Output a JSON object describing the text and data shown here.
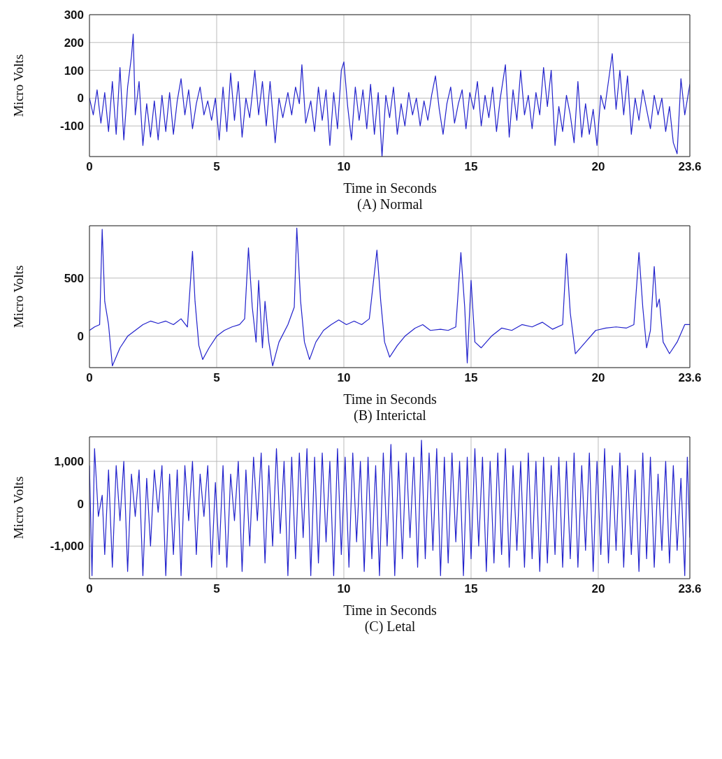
{
  "chart_data": [
    {
      "type": "line",
      "title": "(A)  Normal",
      "xlabel": "Time in Seconds",
      "ylabel": "Micro Volts",
      "xlim": [
        0,
        23.6
      ],
      "ylim": [
        -210,
        300
      ],
      "xticks": [
        0,
        5,
        10,
        15,
        20,
        23.6
      ],
      "yticks": [
        -100,
        0,
        100,
        200,
        300
      ],
      "grid": true,
      "marker": "none",
      "line_style": "solid",
      "x": [
        0,
        0.15,
        0.3,
        0.45,
        0.6,
        0.75,
        0.9,
        1.05,
        1.2,
        1.35,
        1.5,
        1.65,
        1.72,
        1.8,
        1.95,
        2.1,
        2.25,
        2.4,
        2.55,
        2.7,
        2.85,
        3.0,
        3.15,
        3.3,
        3.45,
        3.6,
        3.75,
        3.9,
        4.05,
        4.2,
        4.35,
        4.5,
        4.65,
        4.8,
        4.95,
        5.1,
        5.25,
        5.4,
        5.55,
        5.7,
        5.85,
        6.0,
        6.15,
        6.3,
        6.5,
        6.65,
        6.8,
        6.95,
        7.1,
        7.3,
        7.45,
        7.6,
        7.8,
        7.95,
        8.1,
        8.25,
        8.35,
        8.5,
        8.7,
        8.85,
        9.0,
        9.15,
        9.3,
        9.45,
        9.6,
        9.75,
        9.9,
        10.0,
        10.15,
        10.3,
        10.45,
        10.6,
        10.75,
        10.9,
        11.05,
        11.2,
        11.35,
        11.5,
        11.65,
        11.8,
        11.95,
        12.1,
        12.25,
        12.4,
        12.55,
        12.7,
        12.85,
        13.0,
        13.15,
        13.3,
        13.45,
        13.6,
        13.75,
        13.9,
        14.05,
        14.2,
        14.35,
        14.5,
        14.65,
        14.8,
        14.95,
        15.1,
        15.25,
        15.4,
        15.55,
        15.7,
        15.85,
        16.0,
        16.15,
        16.35,
        16.5,
        16.65,
        16.8,
        16.95,
        17.1,
        17.25,
        17.4,
        17.55,
        17.7,
        17.85,
        18.0,
        18.15,
        18.3,
        18.45,
        18.6,
        18.75,
        18.9,
        19.05,
        19.2,
        19.35,
        19.5,
        19.65,
        19.8,
        19.95,
        20.1,
        20.25,
        20.4,
        20.55,
        20.7,
        20.85,
        21.0,
        21.15,
        21.3,
        21.45,
        21.6,
        21.75,
        21.9,
        22.05,
        22.2,
        22.35,
        22.5,
        22.65,
        22.8,
        22.95,
        23.1,
        23.25,
        23.4,
        23.6
      ],
      "series": [
        {
          "color": "#2222cc",
          "values": [
            0,
            -60,
            30,
            -90,
            20,
            -120,
            60,
            -130,
            110,
            -150,
            40,
            150,
            230,
            -60,
            60,
            -170,
            -20,
            -140,
            -10,
            -150,
            10,
            -120,
            20,
            -130,
            -10,
            70,
            -60,
            30,
            -110,
            -20,
            40,
            -60,
            -10,
            -80,
            0,
            -150,
            40,
            -120,
            90,
            -80,
            60,
            -140,
            0,
            -70,
            100,
            -60,
            60,
            -100,
            60,
            -160,
            0,
            -70,
            20,
            -60,
            40,
            -20,
            120,
            -90,
            -10,
            -120,
            40,
            -80,
            30,
            -170,
            20,
            -110,
            100,
            130,
            -30,
            -150,
            40,
            -80,
            30,
            -110,
            50,
            -130,
            20,
            -210,
            10,
            -70,
            40,
            -130,
            -20,
            -100,
            20,
            -60,
            0,
            -100,
            -10,
            -80,
            10,
            80,
            -40,
            -130,
            -20,
            40,
            -90,
            -20,
            30,
            -110,
            20,
            -40,
            60,
            -100,
            10,
            -70,
            40,
            -120,
            0,
            120,
            -140,
            30,
            -80,
            100,
            -60,
            10,
            -110,
            20,
            -60,
            110,
            -30,
            100,
            -170,
            -30,
            -120,
            10,
            -60,
            -160,
            60,
            -140,
            -20,
            -130,
            -40,
            -170,
            10,
            -40,
            60,
            160,
            -40,
            100,
            -60,
            80,
            -130,
            0,
            -80,
            30,
            -40,
            -110,
            10,
            -60,
            0,
            -120,
            -30,
            -160,
            -200,
            70,
            -60,
            50
          ]
        }
      ]
    },
    {
      "type": "line",
      "title": "(B)  Interictal",
      "xlabel": "Time in Seconds",
      "ylabel": "Micro Volts",
      "xlim": [
        0,
        23.6
      ],
      "ylim": [
        -270,
        950
      ],
      "xticks": [
        0,
        5,
        10,
        15,
        20,
        23.6
      ],
      "yticks": [
        0,
        500
      ],
      "grid": true,
      "marker": "none",
      "line_style": "solid",
      "x": [
        0,
        0.2,
        0.4,
        0.5,
        0.6,
        0.75,
        0.9,
        1.2,
        1.5,
        1.8,
        2.1,
        2.4,
        2.7,
        3.0,
        3.3,
        3.6,
        3.85,
        4.05,
        4.15,
        4.3,
        4.45,
        4.7,
        5.0,
        5.3,
        5.6,
        5.9,
        6.1,
        6.25,
        6.4,
        6.55,
        6.65,
        6.8,
        6.9,
        7.05,
        7.2,
        7.45,
        7.8,
        8.05,
        8.15,
        8.3,
        8.45,
        8.65,
        8.9,
        9.2,
        9.5,
        9.8,
        10.1,
        10.4,
        10.7,
        11.0,
        11.3,
        11.45,
        11.6,
        11.8,
        12.1,
        12.4,
        12.8,
        13.1,
        13.4,
        13.8,
        14.1,
        14.4,
        14.6,
        14.75,
        14.85,
        15.0,
        15.15,
        15.4,
        15.8,
        16.2,
        16.6,
        17.0,
        17.4,
        17.8,
        18.2,
        18.6,
        18.75,
        18.9,
        19.1,
        19.5,
        19.9,
        20.3,
        20.7,
        21.1,
        21.4,
        21.6,
        21.75,
        21.9,
        22.05,
        22.2,
        22.3,
        22.4,
        22.55,
        22.8,
        23.1,
        23.4,
        23.6
      ],
      "series": [
        {
          "color": "#2222cc",
          "values": [
            50,
            80,
            100,
            920,
            300,
            100,
            -255,
            -100,
            0,
            50,
            100,
            130,
            110,
            130,
            100,
            150,
            80,
            730,
            300,
            -80,
            -200,
            -100,
            0,
            50,
            80,
            100,
            150,
            760,
            250,
            -50,
            480,
            -100,
            300,
            -50,
            -255,
            -50,
            100,
            250,
            930,
            300,
            -50,
            -200,
            -50,
            50,
            100,
            140,
            100,
            130,
            100,
            150,
            740,
            300,
            -50,
            -180,
            -80,
            0,
            70,
            100,
            50,
            60,
            50,
            80,
            720,
            250,
            -230,
            480,
            -50,
            -100,
            0,
            70,
            50,
            100,
            80,
            120,
            60,
            100,
            710,
            200,
            -150,
            -50,
            50,
            70,
            80,
            70,
            100,
            720,
            250,
            -100,
            50,
            600,
            250,
            320,
            -50,
            -150,
            -50,
            100,
            100
          ]
        }
      ]
    },
    {
      "type": "line",
      "title": "(C) Letal",
      "xlabel": "Time in Seconds",
      "ylabel": "Micro Volts",
      "xlim": [
        0,
        23.6
      ],
      "ylim": [
        -1770,
        1580
      ],
      "xticks": [
        0,
        5,
        10,
        15,
        20,
        23.6
      ],
      "yticks": [
        {
          "value": -1000,
          "label": "-1,000"
        },
        0,
        {
          "value": 1000,
          "label": "1,000"
        }
      ],
      "grid": true,
      "marker": "none",
      "line_style": "solid",
      "x": [
        0,
        0.1,
        0.2,
        0.35,
        0.5,
        0.6,
        0.75,
        0.9,
        1.05,
        1.2,
        1.35,
        1.5,
        1.65,
        1.8,
        1.95,
        2.1,
        2.25,
        2.4,
        2.55,
        2.7,
        2.85,
        3.0,
        3.15,
        3.3,
        3.45,
        3.6,
        3.75,
        3.9,
        4.05,
        4.2,
        4.35,
        4.5,
        4.65,
        4.8,
        4.95,
        5.1,
        5.25,
        5.4,
        5.55,
        5.7,
        5.85,
        6.0,
        6.15,
        6.3,
        6.45,
        6.6,
        6.75,
        6.9,
        7.05,
        7.2,
        7.35,
        7.5,
        7.65,
        7.8,
        7.95,
        8.1,
        8.25,
        8.4,
        8.55,
        8.7,
        8.85,
        9.0,
        9.15,
        9.3,
        9.45,
        9.6,
        9.75,
        9.9,
        10.05,
        10.2,
        10.35,
        10.5,
        10.65,
        10.8,
        10.95,
        11.1,
        11.25,
        11.4,
        11.55,
        11.7,
        11.85,
        12.0,
        12.15,
        12.3,
        12.45,
        12.6,
        12.75,
        12.9,
        13.05,
        13.2,
        13.35,
        13.5,
        13.65,
        13.8,
        13.95,
        14.1,
        14.25,
        14.4,
        14.55,
        14.7,
        14.85,
        15.0,
        15.15,
        15.3,
        15.45,
        15.6,
        15.75,
        15.9,
        16.05,
        16.2,
        16.35,
        16.5,
        16.65,
        16.8,
        16.95,
        17.1,
        17.25,
        17.4,
        17.55,
        17.7,
        17.85,
        18.0,
        18.15,
        18.3,
        18.45,
        18.6,
        18.75,
        18.9,
        19.05,
        19.2,
        19.35,
        19.5,
        19.65,
        19.8,
        19.95,
        20.1,
        20.25,
        20.4,
        20.55,
        20.7,
        20.85,
        21.0,
        21.15,
        21.3,
        21.45,
        21.6,
        21.75,
        21.9,
        22.05,
        22.2,
        22.35,
        22.5,
        22.65,
        22.8,
        22.95,
        23.1,
        23.25,
        23.4,
        23.5,
        23.6
      ],
      "series": [
        {
          "color": "#2222cc",
          "values": [
            900,
            -1700,
            1300,
            -300,
            200,
            -1200,
            800,
            -1500,
            900,
            -400,
            1000,
            -1600,
            700,
            -300,
            800,
            -1700,
            600,
            -1000,
            800,
            -200,
            900,
            -1700,
            700,
            -1200,
            800,
            -1700,
            900,
            -400,
            1000,
            -1200,
            700,
            -300,
            900,
            -1500,
            500,
            -1200,
            900,
            -1500,
            700,
            -400,
            1000,
            -1600,
            800,
            -1000,
            1100,
            -400,
            1200,
            -1400,
            900,
            -1000,
            1300,
            -700,
            1000,
            -1700,
            1100,
            -1300,
            1200,
            -800,
            1300,
            -1700,
            1100,
            -1400,
            1200,
            -900,
            1000,
            -1700,
            1300,
            -1200,
            1100,
            -1500,
            1200,
            -900,
            1000,
            -1600,
            1100,
            -1300,
            900,
            -1700,
            1200,
            -1000,
            1400,
            -1700,
            1000,
            -1300,
            1200,
            -800,
            1100,
            -1500,
            1500,
            -1300,
            1200,
            -1100,
            1300,
            -1700,
            1100,
            -1400,
            1200,
            -900,
            1000,
            -1700,
            1100,
            -1300,
            1300,
            -1000,
            1100,
            -1600,
            1000,
            -1400,
            1200,
            -1200,
            1300,
            -1500,
            900,
            -1100,
            1000,
            -1500,
            1200,
            -1300,
            1000,
            -1600,
            1100,
            -1400,
            900,
            -1200,
            1100,
            -1500,
            1000,
            -1300,
            1200,
            -1500,
            900,
            -1100,
            1200,
            -1600,
            1000,
            -1200,
            1300,
            -1400,
            900,
            -1100,
            1200,
            -1500,
            900,
            -1200,
            800,
            -1600,
            1200,
            -1300,
            1100,
            -1500,
            700,
            -1100,
            1000,
            -1400,
            900,
            -1100,
            600,
            -1700,
            1100,
            -800
          ]
        }
      ]
    }
  ]
}
